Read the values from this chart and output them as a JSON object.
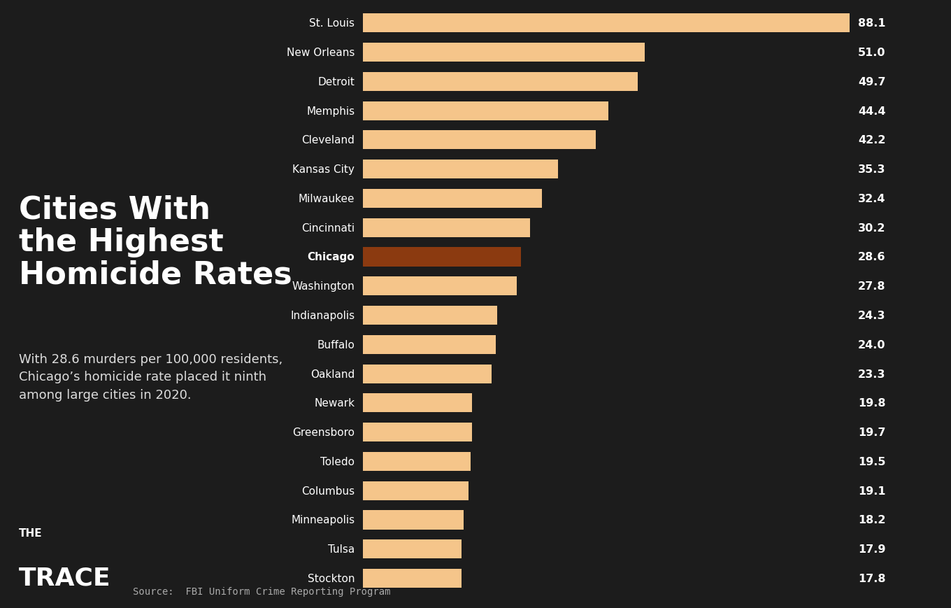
{
  "cities": [
    "St. Louis",
    "New Orleans",
    "Detroit",
    "Memphis",
    "Cleveland",
    "Kansas City",
    "Milwaukee",
    "Cincinnati",
    "Chicago",
    "Washington",
    "Indianapolis",
    "Buffalo",
    "Oakland",
    "Newark",
    "Greensboro",
    "Toledo",
    "Columbus",
    "Minneapolis",
    "Tulsa",
    "Stockton"
  ],
  "values": [
    88.1,
    51.0,
    49.7,
    44.4,
    42.2,
    35.3,
    32.4,
    30.2,
    28.6,
    27.8,
    24.3,
    24.0,
    23.3,
    19.8,
    19.7,
    19.5,
    19.1,
    18.2,
    17.9,
    17.8
  ],
  "bar_color_default": "#F5C58A",
  "bar_color_highlight": "#8B3A10",
  "highlight_city": "Chicago",
  "background_color": "#1C1C1C",
  "text_color": "#ffffff",
  "value_color": "#ffffff",
  "title_line1": "Cities With",
  "title_line2": "the Highest",
  "title_line3": "Homicide Rates",
  "subtitle": "With 28.6 murders per 100,000 residents,\nChicago’s homicide rate placed it ninth\namong large cities in 2020.",
  "source": "Source:  FBI Uniform Crime Reporting Program",
  "logo_text_top": "THE",
  "logo_text_bottom": "TRACE",
  "bar_height": 0.65,
  "title_fontsize": 32,
  "subtitle_fontsize": 13,
  "city_label_fontsize": 11,
  "value_fontsize": 11.5,
  "source_fontsize": 10
}
